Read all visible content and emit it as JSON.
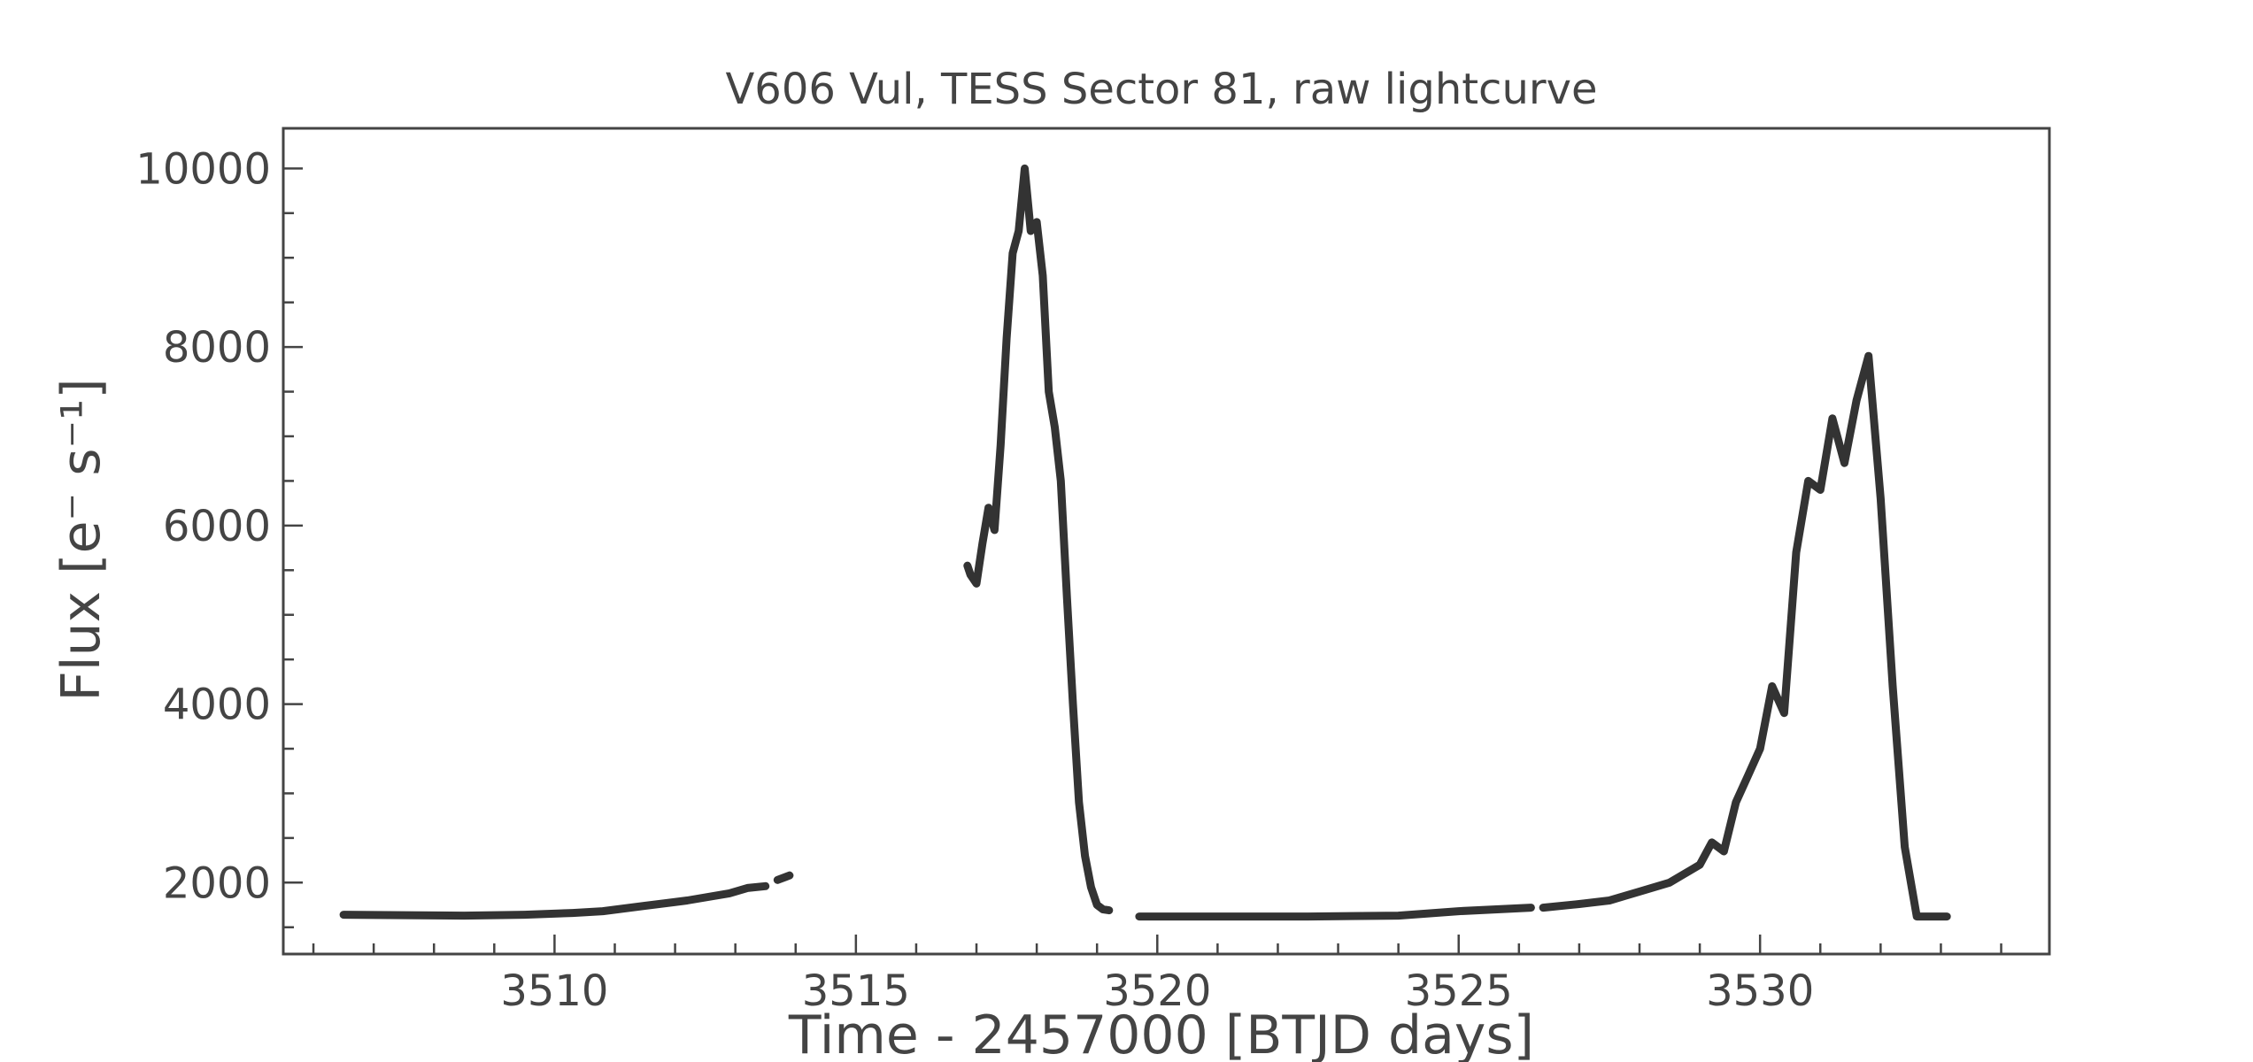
{
  "chart_data": {
    "type": "line",
    "title": "V606 Vul, TESS Sector 81, raw lightcurve",
    "xlabel": "Time - 2457000 [BTJD days]",
    "ylabel": "Flux [e⁻ s⁻¹]",
    "xlim": [
      3505.5,
      3534.8
    ],
    "ylim": [
      1200,
      10450
    ],
    "xticks": [
      3510,
      3515,
      3520,
      3525,
      3530
    ],
    "xtick_labels": [
      "3510",
      "3515",
      "3520",
      "3525",
      "3530"
    ],
    "yticks": [
      2000,
      4000,
      6000,
      8000,
      10000
    ],
    "ytick_labels": [
      "2000",
      "4000",
      "6000",
      "8000",
      "10000"
    ],
    "grid": false,
    "series": [
      {
        "color": "#333333",
        "segments": [
          {
            "x": [
              3506.5,
              3507.5,
              3508.5,
              3509.5,
              3510.3,
              3510.8,
              3511.5,
              3512.2,
              3512.9,
              3513.2,
              3513.5
            ],
            "y": [
              1640,
              1635,
              1630,
              1640,
              1660,
              1680,
              1740,
              1800,
              1880,
              1940,
              1960
            ]
          },
          {
            "x": [
              3513.7,
              3513.9
            ],
            "y": [
              2030,
              2080
            ]
          },
          {
            "x": [
              3516.85,
              3516.9,
              3517.0,
              3517.1,
              3517.2,
              3517.3,
              3517.4,
              3517.5,
              3517.6,
              3517.7,
              3517.8,
              3517.9,
              3518.0,
              3518.1,
              3518.2,
              3518.3,
              3518.4,
              3518.5,
              3518.6,
              3518.7,
              3518.8,
              3518.9,
              3519.0,
              3519.1,
              3519.2
            ],
            "y": [
              5550,
              5450,
              5350,
              5800,
              6200,
              5950,
              6900,
              8100,
              9050,
              9300,
              10000,
              9300,
              9400,
              8800,
              7500,
              7100,
              6500,
              5200,
              4000,
              2900,
              2300,
              1950,
              1750,
              1700,
              1690
            ]
          },
          {
            "x": [
              3519.7,
              3521.0,
              3522.5,
              3524.0,
              3525.0,
              3526.2
            ],
            "y": [
              1620,
              1620,
              1620,
              1630,
              1680,
              1720
            ]
          },
          {
            "x": [
              3526.4,
              3527.0,
              3527.5,
              3528.0,
              3528.5,
              3529.0,
              3529.2,
              3529.4,
              3529.6,
              3529.8,
              3530.0,
              3530.2,
              3530.4,
              3530.6,
              3530.8,
              3531.0,
              3531.2,
              3531.4,
              3531.6,
              3531.8,
              3532.0,
              3532.2,
              3532.4,
              3532.6,
              3533.1
            ],
            "y": [
              1720,
              1760,
              1800,
              1900,
              2000,
              2200,
              2450,
              2350,
              2900,
              3200,
              3500,
              4200,
              3900,
              5700,
              6500,
              6400,
              7200,
              6700,
              7400,
              7900,
              6300,
              4200,
              2400,
              1620,
              1620
            ]
          }
        ]
      }
    ]
  }
}
